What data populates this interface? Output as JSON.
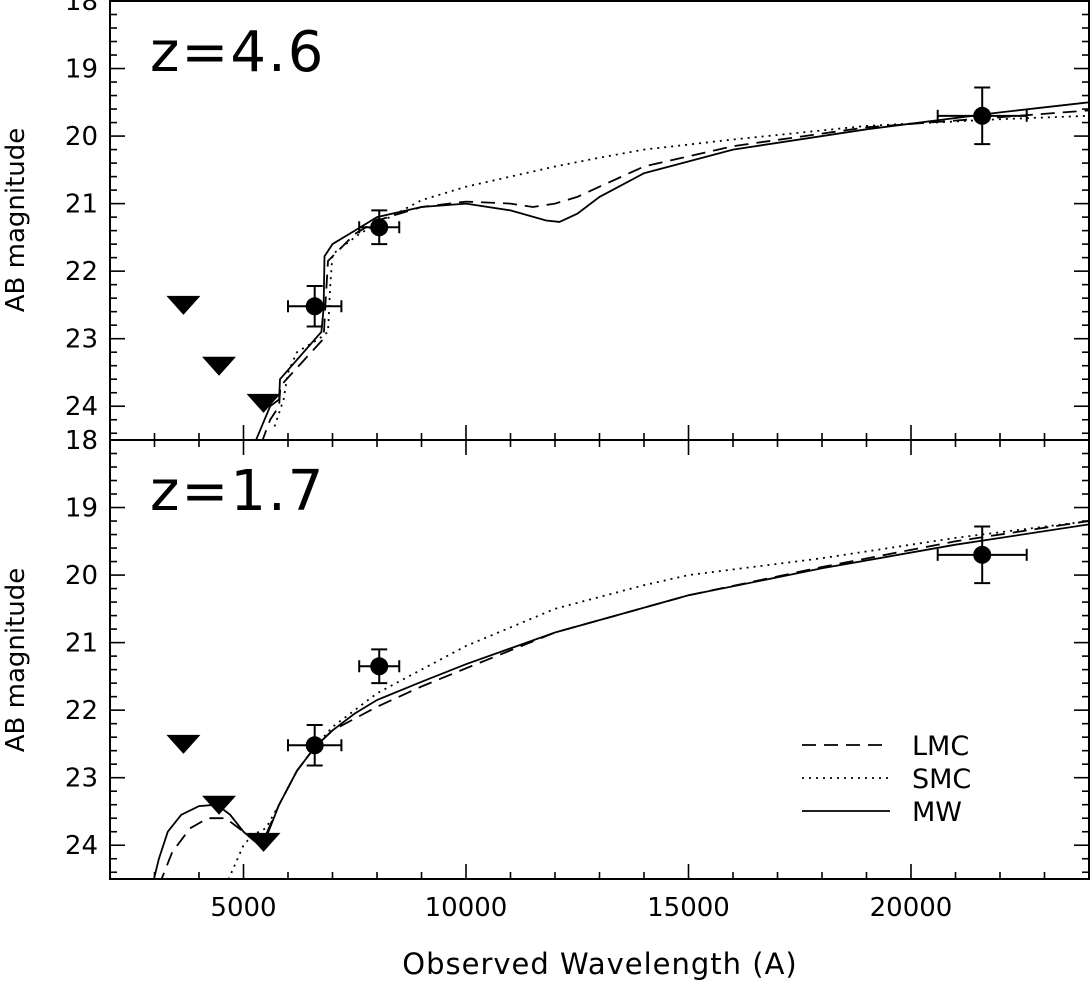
{
  "chart_data": [
    {
      "type": "line",
      "panel": "top",
      "label": "z=4.6",
      "xlabel": "Observed Wavelength (A)",
      "ylabel": "AB magnitude",
      "xlim": [
        2000,
        24000
      ],
      "ylim": [
        24.5,
        18
      ],
      "y_inverted": true,
      "yticks": [
        18,
        19,
        20,
        21,
        22,
        23,
        24
      ],
      "photometry": [
        {
          "x": 6600,
          "y": 22.52,
          "xerr": 600,
          "yerr": 0.3
        },
        {
          "x": 8050,
          "y": 21.35,
          "xerr": 450,
          "yerr": 0.25
        },
        {
          "x": 21600,
          "y": 19.7,
          "xerr": 1000,
          "yerr": 0.42
        }
      ],
      "upper_limits": [
        {
          "x": 3650,
          "y": 22.5
        },
        {
          "x": 4450,
          "y": 23.4
        },
        {
          "x": 5450,
          "y": 23.95
        }
      ],
      "series": [
        {
          "name": "MW",
          "style": "solid",
          "x": [
            5250,
            5600,
            5800,
            5820,
            6750,
            6800,
            6820,
            7000,
            7500,
            8000,
            9000,
            10000,
            11000,
            11800,
            12100,
            12500,
            13000,
            14000,
            16000,
            19000,
            22000,
            24000
          ],
          "y": [
            24.55,
            24.0,
            23.9,
            23.6,
            22.9,
            22.55,
            21.78,
            21.6,
            21.4,
            21.2,
            21.05,
            21.0,
            21.1,
            21.25,
            21.27,
            21.15,
            20.9,
            20.55,
            20.2,
            19.9,
            19.65,
            19.5
          ]
        },
        {
          "name": "LMC",
          "style": "dashed",
          "x": [
            5400,
            5600,
            5800,
            5830,
            6800,
            6850,
            6900,
            7500,
            8000,
            9000,
            10000,
            11000,
            11500,
            12000,
            12500,
            13000,
            14000,
            16000,
            19000,
            22000,
            24000
          ],
          "y": [
            24.55,
            24.2,
            24.0,
            23.7,
            23.0,
            22.4,
            21.85,
            21.45,
            21.25,
            21.05,
            20.97,
            21.0,
            21.05,
            21.0,
            20.9,
            20.75,
            20.45,
            20.15,
            19.87,
            19.72,
            19.62
          ]
        },
        {
          "name": "SMC",
          "style": "dotted",
          "x": [
            5700,
            5900,
            6000,
            6200,
            6700,
            6900,
            6950,
            7000,
            7200,
            7600,
            8000,
            9000,
            10000,
            11000,
            12000,
            13000,
            14000,
            16000,
            19000,
            22000,
            24000
          ],
          "y": [
            24.3,
            23.9,
            23.5,
            23.2,
            23.0,
            22.9,
            22.2,
            21.75,
            21.65,
            21.45,
            21.3,
            20.95,
            20.75,
            20.6,
            20.45,
            20.32,
            20.2,
            20.05,
            19.85,
            19.75,
            19.7
          ]
        }
      ]
    },
    {
      "type": "line",
      "panel": "bottom",
      "label": "z=1.7",
      "xlabel": "Observed Wavelength (A)",
      "ylabel": "AB magnitude",
      "xlim": [
        2000,
        24000
      ],
      "ylim": [
        24.5,
        18
      ],
      "y_inverted": true,
      "yticks": [
        18,
        19,
        20,
        21,
        22,
        23,
        24
      ],
      "xticks": [
        5000,
        10000,
        15000,
        20000
      ],
      "photometry": [
        {
          "x": 6600,
          "y": 22.52,
          "xerr": 600,
          "yerr": 0.3
        },
        {
          "x": 8050,
          "y": 21.35,
          "xerr": 450,
          "yerr": 0.25
        },
        {
          "x": 21600,
          "y": 19.7,
          "xerr": 1000,
          "yerr": 0.42
        }
      ],
      "upper_limits": [
        {
          "x": 3650,
          "y": 22.5
        },
        {
          "x": 4450,
          "y": 23.4
        },
        {
          "x": 5450,
          "y": 23.95
        }
      ],
      "series": [
        {
          "name": "MW",
          "style": "solid",
          "x": [
            2950,
            3100,
            3300,
            3600,
            4000,
            4400,
            4700,
            5000,
            5300,
            5500,
            5800,
            6200,
            6600,
            7000,
            7500,
            8000,
            9000,
            10000,
            12000,
            15000,
            18000,
            21000,
            24000
          ],
          "y": [
            24.6,
            24.2,
            23.8,
            23.55,
            23.42,
            23.4,
            23.55,
            23.8,
            23.97,
            23.9,
            23.4,
            22.9,
            22.55,
            22.3,
            22.05,
            21.85,
            21.58,
            21.32,
            20.85,
            20.3,
            19.9,
            19.55,
            19.25
          ]
        },
        {
          "name": "LMC",
          "style": "dashed",
          "x": [
            3100,
            3400,
            3800,
            4200,
            4600,
            5000,
            5300,
            5500,
            5800,
            6200,
            6600,
            7000,
            8000,
            9000,
            10000,
            12000,
            15000,
            18000,
            21000,
            24000
          ],
          "y": [
            24.6,
            24.1,
            23.75,
            23.6,
            23.6,
            23.8,
            23.92,
            23.85,
            23.4,
            22.9,
            22.55,
            22.3,
            21.95,
            21.65,
            21.38,
            20.85,
            20.3,
            19.88,
            19.5,
            19.2
          ]
        },
        {
          "name": "SMC",
          "style": "dotted",
          "x": [
            4600,
            4800,
            5000,
            5200,
            5500,
            5800,
            6200,
            6600,
            7000,
            8000,
            9000,
            10000,
            12000,
            14000,
            15000,
            18000,
            21000,
            24000
          ],
          "y": [
            24.6,
            24.3,
            24.0,
            23.85,
            23.75,
            23.4,
            22.9,
            22.55,
            22.25,
            21.75,
            21.4,
            21.05,
            20.5,
            20.15,
            20.0,
            19.75,
            19.45,
            19.2
          ]
        }
      ]
    }
  ],
  "legend": {
    "position": "bottom-right of lower panel",
    "entries": [
      {
        "name": "LMC",
        "style": "dashed"
      },
      {
        "name": "SMC",
        "style": "dotted"
      },
      {
        "name": "MW",
        "style": "solid"
      }
    ]
  }
}
